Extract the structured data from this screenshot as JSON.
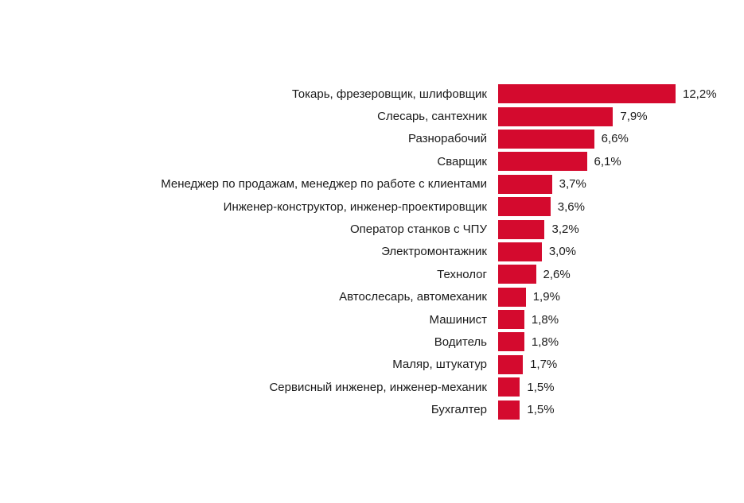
{
  "chart_data": {
    "type": "bar",
    "orientation": "horizontal",
    "title": "",
    "xlabel": "",
    "ylabel": "",
    "xlim": [
      0,
      12.2
    ],
    "grid": false,
    "legend": "none",
    "bar_color": "#d40a2e",
    "categories": [
      "Токарь, фрезеровщик, шлифовщик",
      "Слесарь, сантехник",
      "Разнорабочий",
      "Сварщик",
      "Менеджер по продажам, менеджер по работе с клиентами",
      "Инженер-конструктор, инженер-проектировщик",
      "Оператор станков с ЧПУ",
      "Электромонтажник",
      "Технолог",
      "Автослесарь, автомеханик",
      "Машинист",
      "Водитель",
      "Маляр, штукатур",
      "Сервисный инженер, инженер-механик",
      "Бухгалтер"
    ],
    "values": [
      12.2,
      7.9,
      6.6,
      6.1,
      3.7,
      3.6,
      3.2,
      3.0,
      2.6,
      1.9,
      1.8,
      1.8,
      1.7,
      1.5,
      1.5
    ],
    "value_labels": [
      "12,2%",
      "7,9%",
      "6,6%",
      "6,1%",
      "3,7%",
      "3,6%",
      "3,2%",
      "3,0%",
      "2,6%",
      "1,9%",
      "1,8%",
      "1,8%",
      "1,7%",
      "1,5%",
      "1,5%"
    ]
  }
}
